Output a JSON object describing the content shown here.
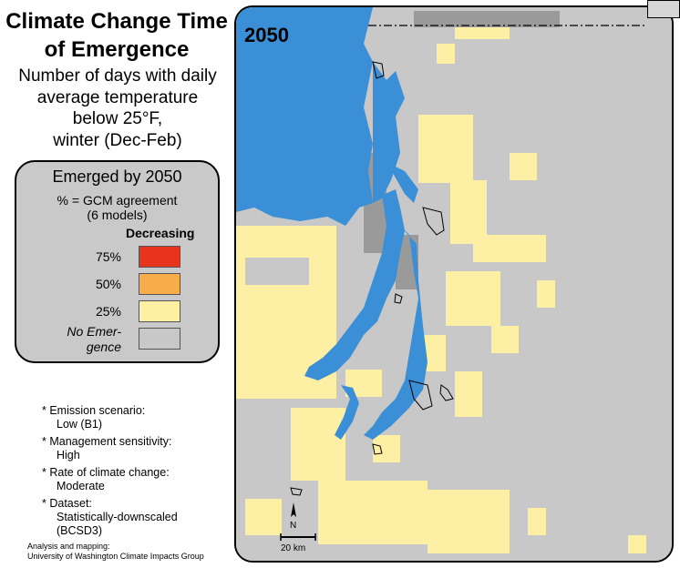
{
  "title": "Climate Change Time of Emergence",
  "subtitle_lines": [
    "Number of days with daily",
    "average temperature",
    "below 25°F,",
    "winter (Dec-Feb)"
  ],
  "legend": {
    "title": "Emerged by 2050",
    "subtitle_line1": "% = GCM agreement",
    "subtitle_line2": "(6 models)",
    "column_header": "Decreasing",
    "items": [
      {
        "label": "75%",
        "color": "#e8341c"
      },
      {
        "label": "50%",
        "color": "#f7ad4a"
      },
      {
        "label": "25%",
        "color": "#fdefa4"
      },
      {
        "label_line1": "No Emer-",
        "label_line2": "gence",
        "color": "#c8c8c8"
      }
    ]
  },
  "notes": [
    {
      "label": "Emission scenario:",
      "value": "Low (B1)"
    },
    {
      "label": "Management sensitivity:",
      "value": "High"
    },
    {
      "label": "Rate of climate change:",
      "value": "Moderate"
    },
    {
      "label": "Dataset:",
      "value_line1": "Statistically-downscaled",
      "value_line2": "(BCSD3)"
    }
  ],
  "credit_line1": "Analysis and mapping:",
  "credit_line2": "University of Washington Climate Impacts Group",
  "map": {
    "year": "2050",
    "scale_label": "20 km",
    "north_label": "N",
    "colors": {
      "water": "#3a8fd6",
      "land": "#c8c8c8",
      "emerged_25": "#fdefa4",
      "dark": "#9a9a9a"
    }
  }
}
